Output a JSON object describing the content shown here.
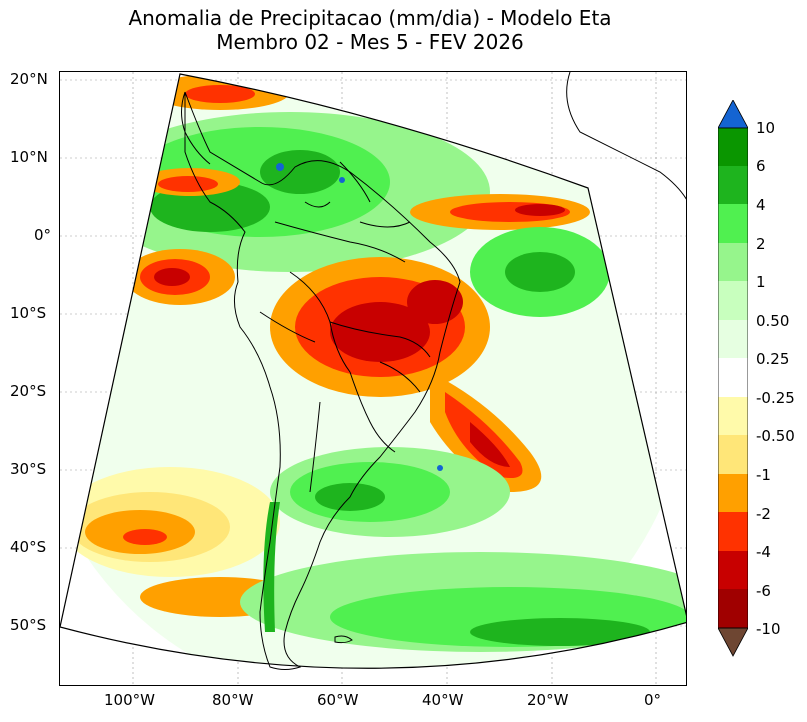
{
  "title_line1": "Anomalia de Precipitacao (mm/dia) - Modelo Eta",
  "title_line2": "Membro 02 - Mes 5 - FEV 2026",
  "lat_labels": [
    "20°N",
    "10°N",
    "0°",
    "10°S",
    "20°S",
    "30°S",
    "40°S",
    "50°S"
  ],
  "lon_labels": [
    "100°W",
    "80°W",
    "60°W",
    "40°W",
    "20°W",
    "0°"
  ],
  "colorbar": {
    "labels": [
      "10",
      "6",
      "4",
      "2",
      "1",
      "0.50",
      "0.25",
      "-0.25",
      "-0.50",
      "-1",
      "-2",
      "-4",
      "-6",
      "-10"
    ],
    "colors": {
      "above_max": "#1464d2",
      "c_6_10": "#0a9600",
      "c_4_6": "#1eb41e",
      "c_2_4": "#50f050",
      "c_1_2": "#96f58c",
      "c_05_1": "#c8ffbe",
      "c_025_05": "#e6ffe1",
      "c_neutral": "#ffffff",
      "c_m05_m025": "#fffaaa",
      "c_m1_m05": "#ffe678",
      "c_m2_m1": "#ffa000",
      "c_m4_m2": "#ff3200",
      "c_m6_m4": "#c80000",
      "c_m10_m6": "#a00000",
      "below_min": "#6e4632"
    }
  },
  "regions": {
    "pacific_northwest": "rainfall deficit",
    "amazon_north": "positive anomaly",
    "central_brazil": "strong deficit",
    "south_atlantic_convergence": "strong deficit",
    "southern_brazil_argentina": "positive anomaly",
    "southeast_pacific": "moderate deficit",
    "southern_ocean": "positive anomaly"
  }
}
